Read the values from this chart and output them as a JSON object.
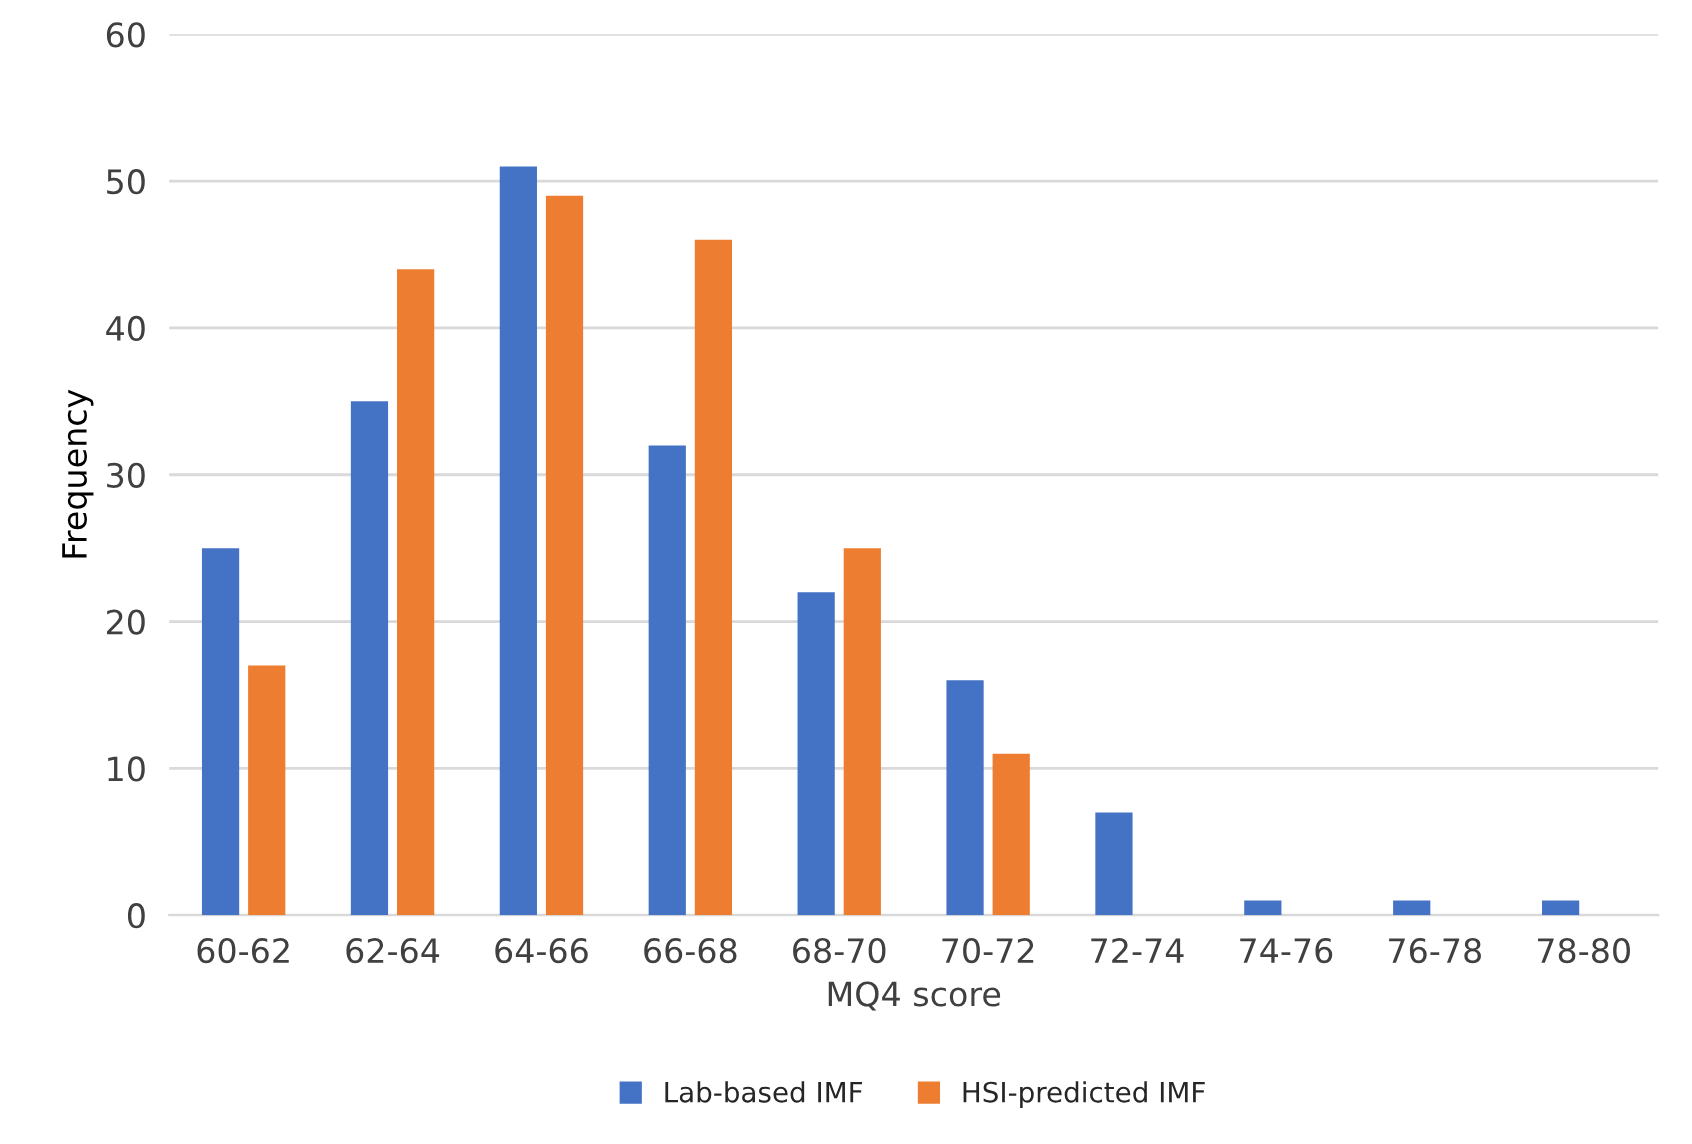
{
  "chart_data": {
    "type": "bar",
    "xlabel": "MQ4 score",
    "ylabel": "Frequency",
    "categories": [
      "60-62",
      "62-64",
      "64-66",
      "66-68",
      "68-70",
      "70-72",
      "72-74",
      "74-76",
      "76-78",
      "78-80"
    ],
    "series": [
      {
        "name": "Lab-based IMF",
        "color": "#4472c4",
        "values": [
          25,
          35,
          51,
          32,
          22,
          16,
          7,
          1,
          1,
          1
        ]
      },
      {
        "name": "HSI-predicted IMF",
        "color": "#ed7d31",
        "values": [
          17,
          44,
          49,
          46,
          25,
          11,
          0,
          0,
          0,
          0
        ]
      }
    ],
    "ylim": [
      0,
      60
    ],
    "yticks": [
      0,
      10,
      20,
      30,
      40,
      50,
      60
    ],
    "grid": "y",
    "legend": "bottom"
  }
}
